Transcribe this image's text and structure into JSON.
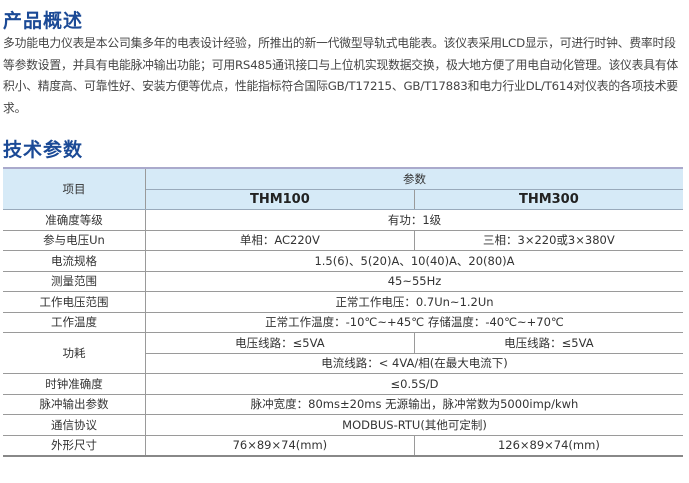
{
  "overview": {
    "title": "产品概述",
    "text": "多功能电力仪表是本公司集多年的电表设计经验，所推出的新一代微型导轨式电能表。该仪表采用LCD显示，可进行时钟、费率时段等参数设置，并具有电能脉冲输出功能；可用RS485通讯接口与上位机实现数据交换，极大地方便了用电自动化管理。该仪表具有体积小、精度高、可靠性好、安装方便等优点，性能指标符合国际GB/T17215、GB/T17883和电力行业DL/T614对仪表的各项技术要求。"
  },
  "specs": {
    "title": "技术参数",
    "header": {
      "item": "项目",
      "params": "参数",
      "models": [
        "THM100",
        "THM300"
      ]
    },
    "rows": [
      {
        "label": "准确度等级",
        "value": "有功：1级"
      },
      {
        "label": "参与电压Un",
        "values": [
          "单相：AC220V",
          "三相：3×220或3×380V"
        ]
      },
      {
        "label": "电流规格",
        "value": "1.5(6)、5(20)A、10(40)A、20(80)A"
      },
      {
        "label": "测量范围",
        "value": "45~55Hz"
      },
      {
        "label": "工作电压范围",
        "value": "正常工作电压：0.7Un~1.2Un"
      },
      {
        "label": "工作温度",
        "value": "正常工作温度：-10℃~+45℃ 存储温度：-40℃~+70℃"
      },
      {
        "label": "功耗",
        "values": [
          "电压线路：≤5VA",
          "电压线路：≤5VA"
        ],
        "value": "电流线路：< 4VA/相(在最大电流下)"
      },
      {
        "label": "时钟准确度",
        "value": "≤0.5S/D"
      },
      {
        "label": "脉冲输出参数",
        "value": "脉冲宽度：80ms±20ms 无源输出，脉冲常数为5000imp/kwh"
      },
      {
        "label": "通信协议",
        "value": "MODBUS-RTU(其他可定制)"
      },
      {
        "label": "外形尺寸",
        "values": [
          "76×89×74(mm)",
          "126×89×74(mm)"
        ]
      }
    ]
  }
}
